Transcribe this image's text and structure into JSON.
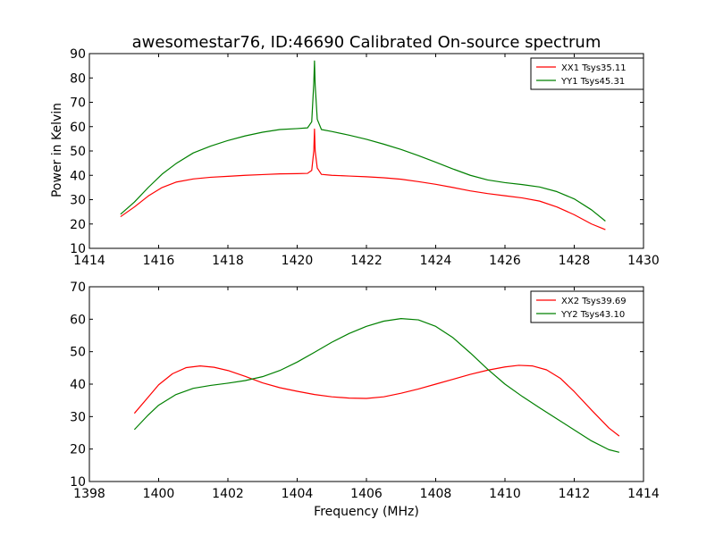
{
  "figure": {
    "title": "awesomestar76, ID:46690 Calibrated On-source spectrum",
    "xlabel": "Frequency (MHz)",
    "ylabel_top": "Power in Kelvin"
  },
  "colors": {
    "red": "#ff0000",
    "green": "#008000"
  },
  "chart_data": [
    {
      "type": "line",
      "panel": "top",
      "xlim": [
        1414,
        1430
      ],
      "ylim": [
        10,
        90
      ],
      "xticks": [
        1414,
        1416,
        1418,
        1420,
        1422,
        1424,
        1426,
        1428,
        1430
      ],
      "yticks": [
        10,
        20,
        30,
        40,
        50,
        60,
        70,
        80,
        90
      ],
      "legend_position": "top-right",
      "series": [
        {
          "name": "XX1 Tsys35.11",
          "color": "#ff0000",
          "x": [
            1414.9,
            1415.3,
            1415.7,
            1416.1,
            1416.5,
            1417.0,
            1417.5,
            1418.0,
            1418.5,
            1419.0,
            1419.5,
            1420.0,
            1420.3,
            1420.42,
            1420.48,
            1420.5,
            1420.52,
            1420.58,
            1420.7,
            1421.0,
            1421.5,
            1422.0,
            1422.5,
            1423.0,
            1423.5,
            1424.0,
            1424.5,
            1425.0,
            1425.5,
            1426.0,
            1426.5,
            1427.0,
            1427.5,
            1428.0,
            1428.5,
            1428.9
          ],
          "y": [
            23,
            27,
            31.5,
            35,
            37.2,
            38.5,
            39.2,
            39.6,
            40.0,
            40.3,
            40.6,
            40.7,
            40.8,
            42,
            50,
            59,
            50,
            43,
            40.4,
            40.0,
            39.7,
            39.4,
            39.0,
            38.4,
            37.4,
            36.3,
            35.0,
            33.6,
            32.5,
            31.6,
            30.7,
            29.4,
            27.0,
            23.8,
            20.0,
            17.7
          ]
        },
        {
          "name": "YY1 Tsys45.31",
          "color": "#008000",
          "x": [
            1414.9,
            1415.3,
            1415.7,
            1416.1,
            1416.5,
            1417.0,
            1417.5,
            1418.0,
            1418.5,
            1419.0,
            1419.5,
            1420.0,
            1420.3,
            1420.42,
            1420.48,
            1420.5,
            1420.52,
            1420.58,
            1420.7,
            1421.0,
            1421.5,
            1422.0,
            1422.5,
            1423.0,
            1423.5,
            1424.0,
            1424.5,
            1425.0,
            1425.5,
            1426.0,
            1426.5,
            1427.0,
            1427.5,
            1428.0,
            1428.5,
            1428.9
          ],
          "y": [
            24,
            29,
            35,
            40.5,
            44.8,
            49.2,
            52.0,
            54.3,
            56.2,
            57.7,
            58.8,
            59.2,
            59.5,
            62,
            78,
            87,
            77,
            63,
            58.8,
            58.0,
            56.5,
            54.8,
            52.8,
            50.6,
            48.1,
            45.4,
            42.6,
            40.0,
            38.1,
            37.0,
            36.2,
            35.2,
            33.3,
            30.3,
            25.8,
            21.2
          ]
        }
      ]
    },
    {
      "type": "line",
      "panel": "bottom",
      "xlim": [
        1398,
        1414
      ],
      "ylim": [
        10,
        70
      ],
      "xticks": [
        1398,
        1400,
        1402,
        1404,
        1406,
        1408,
        1410,
        1412,
        1414
      ],
      "yticks": [
        10,
        20,
        30,
        40,
        50,
        60,
        70
      ],
      "legend_position": "top-right",
      "series": [
        {
          "name": "XX2 Tsys39.69",
          "color": "#ff0000",
          "x": [
            1399.3,
            1399.7,
            1400.0,
            1400.4,
            1400.8,
            1401.2,
            1401.6,
            1402.0,
            1402.5,
            1403.0,
            1403.5,
            1404.0,
            1404.5,
            1405.0,
            1405.5,
            1406.0,
            1406.5,
            1407.0,
            1407.5,
            1408.0,
            1408.5,
            1409.0,
            1409.5,
            1410.0,
            1410.4,
            1410.8,
            1411.2,
            1411.6,
            1412.0,
            1412.5,
            1413.0,
            1413.3
          ],
          "y": [
            31,
            36,
            39.8,
            43.2,
            45.1,
            45.6,
            45.2,
            44.2,
            42.4,
            40.4,
            38.9,
            37.8,
            36.8,
            36.1,
            35.7,
            35.6,
            36.1,
            37.2,
            38.5,
            40.0,
            41.5,
            43.0,
            44.3,
            45.3,
            45.8,
            45.6,
            44.4,
            41.8,
            37.7,
            32.0,
            26.5,
            24.0
          ]
        },
        {
          "name": "YY2 Tsys43.10",
          "color": "#008000",
          "x": [
            1399.3,
            1399.7,
            1400.0,
            1400.5,
            1401.0,
            1401.5,
            1402.0,
            1402.5,
            1403.0,
            1403.5,
            1404.0,
            1404.5,
            1405.0,
            1405.5,
            1406.0,
            1406.5,
            1407.0,
            1407.5,
            1408.0,
            1408.5,
            1409.0,
            1409.5,
            1410.0,
            1410.5,
            1411.0,
            1411.5,
            1412.0,
            1412.5,
            1413.0,
            1413.3
          ],
          "y": [
            26,
            30.5,
            33.5,
            36.8,
            38.7,
            39.6,
            40.3,
            41.1,
            42.3,
            44.2,
            46.8,
            49.8,
            52.9,
            55.6,
            57.8,
            59.4,
            60.2,
            59.8,
            57.8,
            54.3,
            49.6,
            44.6,
            40.0,
            36.2,
            32.7,
            29.3,
            25.9,
            22.5,
            19.8,
            19.0
          ]
        }
      ]
    }
  ]
}
